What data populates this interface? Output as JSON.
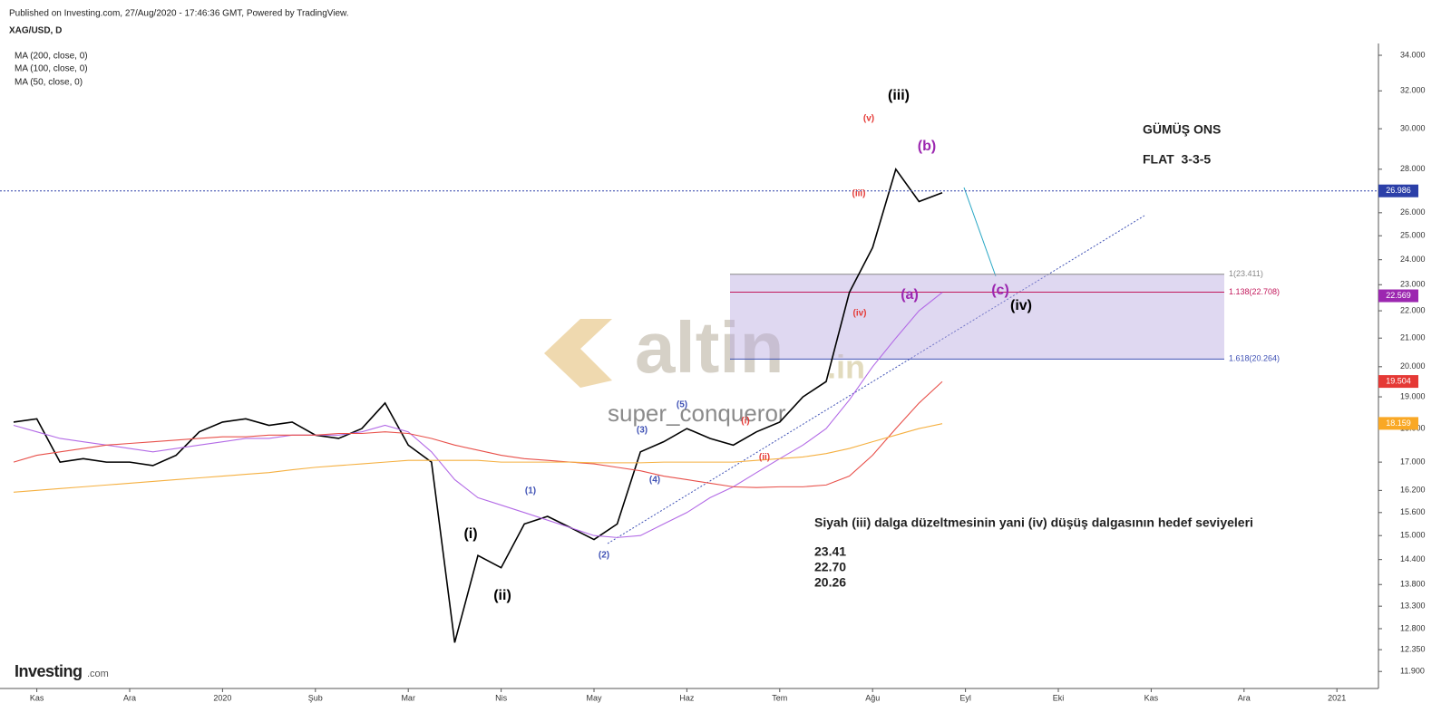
{
  "header": {
    "published": "Published on Investing.com, 27/Aug/2020 - 17:46:36 GMT, Powered by TradingView.",
    "symbol": "XAG/USD, D",
    "indicators": [
      "MA (200, close, 0)",
      "MA (100, close, 0)",
      "MA (50, close, 0)"
    ]
  },
  "watermark": {
    "brand": "altin",
    "suffix": ".in",
    "author": "super_conqueror"
  },
  "logo": {
    "name": "Investing",
    "suffix": ".com"
  },
  "chart_data": {
    "type": "line",
    "title": "GÜMÜŞ ONS",
    "subtitle": "FLAT  3-3-5",
    "log": true,
    "categories": [
      null,
      "Kas",
      null,
      null,
      null,
      "Ara",
      null,
      null,
      null,
      "2020",
      null,
      null,
      null,
      "Şub",
      null,
      null,
      null,
      "Mar",
      null,
      null,
      null,
      "Nis",
      null,
      null,
      null,
      "May",
      null,
      null,
      null,
      "Haz",
      null,
      null,
      null,
      "Tem",
      null,
      null,
      null,
      "Ağu",
      null,
      null,
      null,
      "Eyl",
      null,
      null,
      null,
      "Eki",
      null,
      null,
      null,
      "Kas",
      null,
      null,
      null,
      "Ara",
      null,
      null,
      null,
      "2021",
      null
    ],
    "series": [
      {
        "name": "XAG/USD",
        "color": "#000000",
        "last": 26.986,
        "last_color": "#2b3fa8",
        "values": [
          18.2,
          18.3,
          17.0,
          17.1,
          17.0,
          17.0,
          16.9,
          17.2,
          17.9,
          18.2,
          18.3,
          18.1,
          18.2,
          17.8,
          17.7,
          18.0,
          18.8,
          17.5,
          17.0,
          12.5,
          14.5,
          14.2,
          15.3,
          15.5,
          15.2,
          14.9,
          15.3,
          17.3,
          17.6,
          18.0,
          17.7,
          17.5,
          17.9,
          18.2,
          19.0,
          19.5,
          22.7,
          24.5,
          28.0,
          26.5,
          26.9,
          null,
          null,
          null,
          null,
          null,
          null,
          null,
          null,
          null,
          null,
          null,
          null,
          null,
          null,
          null,
          null,
          null,
          null
        ]
      },
      {
        "name": "MA (50, close, 0)",
        "color": "#b36be6",
        "last": 22.569,
        "last_color": "#9c27b0",
        "values": [
          18.1,
          17.9,
          17.7,
          17.6,
          17.5,
          17.4,
          17.3,
          17.4,
          17.5,
          17.6,
          17.7,
          17.7,
          17.8,
          17.8,
          17.8,
          17.9,
          18.1,
          17.9,
          17.3,
          16.5,
          16.0,
          15.8,
          15.6,
          15.4,
          15.2,
          15.0,
          14.95,
          15.0,
          15.3,
          15.6,
          16.0,
          16.3,
          16.7,
          17.1,
          17.5,
          18.0,
          18.9,
          20.0,
          21.0,
          22.0,
          22.7,
          null,
          null,
          null,
          null,
          null,
          null,
          null,
          null,
          null,
          null,
          null,
          null,
          null,
          null,
          null,
          null,
          null,
          null
        ]
      },
      {
        "name": "MA (100, close, 0)",
        "color": "#e8504a",
        "last": 19.504,
        "last_color": "#e53935",
        "values": [
          17.0,
          17.2,
          17.3,
          17.4,
          17.5,
          17.55,
          17.6,
          17.65,
          17.7,
          17.75,
          17.75,
          17.8,
          17.8,
          17.8,
          17.85,
          17.85,
          17.9,
          17.85,
          17.7,
          17.5,
          17.35,
          17.2,
          17.1,
          17.05,
          17.0,
          16.95,
          16.85,
          16.75,
          16.6,
          16.5,
          16.4,
          16.3,
          16.28,
          16.3,
          16.3,
          16.35,
          16.6,
          17.2,
          18.0,
          18.8,
          19.5,
          null,
          null,
          null,
          null,
          null,
          null,
          null,
          null,
          null,
          null,
          null,
          null,
          null,
          null,
          null,
          null,
          null,
          null
        ]
      },
      {
        "name": "MA (200, close, 0)",
        "color": "#f5b041",
        "last": 18.159,
        "last_color": "#f9a825",
        "values": [
          16.15,
          16.2,
          16.25,
          16.3,
          16.35,
          16.4,
          16.45,
          16.5,
          16.55,
          16.6,
          16.65,
          16.7,
          16.78,
          16.85,
          16.9,
          16.95,
          17.0,
          17.05,
          17.05,
          17.05,
          17.05,
          17.0,
          17.0,
          17.0,
          17.0,
          16.98,
          16.98,
          16.98,
          17.0,
          17.0,
          17.0,
          17.0,
          17.05,
          17.1,
          17.15,
          17.25,
          17.4,
          17.6,
          17.8,
          18.0,
          18.15,
          null,
          null,
          null,
          null,
          null,
          null,
          null,
          null,
          null,
          null,
          null,
          null,
          null,
          null,
          null,
          null,
          null,
          null
        ]
      }
    ],
    "ylim": [
      11.56,
      34.69
    ],
    "yticks": [
      {
        "value": 11.9,
        "label": "11.900"
      },
      {
        "value": 12.35,
        "label": "12.350"
      },
      {
        "value": 12.8,
        "label": "12.800"
      },
      {
        "value": 13.3,
        "label": "13.300"
      },
      {
        "value": 13.8,
        "label": "13.800"
      },
      {
        "value": 14.4,
        "label": "14.400"
      },
      {
        "value": 15,
        "label": "15.000"
      },
      {
        "value": 15.6,
        "label": "15.600"
      },
      {
        "value": 16.2,
        "label": "16.200"
      },
      {
        "value": 17,
        "label": "17.000"
      },
      {
        "value": 18,
        "label": "18.000"
      },
      {
        "value": 19,
        "label": "19.000"
      },
      {
        "value": 20,
        "label": "20.000"
      },
      {
        "value": 21,
        "label": "21.000"
      },
      {
        "value": 22,
        "label": "22.000"
      },
      {
        "value": 23,
        "label": "23.000"
      },
      {
        "value": 24,
        "label": "24.000"
      },
      {
        "value": 25,
        "label": "25.000"
      },
      {
        "value": 26,
        "label": "26.000"
      },
      {
        "value": 28,
        "label": "28.000"
      },
      {
        "value": 30,
        "label": "30.000"
      },
      {
        "value": 32,
        "label": "32.000"
      },
      {
        "value": 34,
        "label": "34.000"
      }
    ],
    "fib_levels": [
      {
        "value": 23.411,
        "label": "1(23.411)",
        "color": "#888888"
      },
      {
        "value": 22.708,
        "label": "1.138(22.708)",
        "color": "#c2185b"
      },
      {
        "value": 20.264,
        "label": "1.618(20.264)",
        "color": "#3f51b5"
      }
    ],
    "annotations": [
      {
        "text": "(iii)",
        "color": "#000000"
      },
      {
        "text": "(v)",
        "color": "#e53935"
      },
      {
        "text": "(b)",
        "color": "#9c27b0"
      },
      {
        "text": "(iii)",
        "color": "#e53935"
      },
      {
        "text": "(a)",
        "color": "#9c27b0"
      },
      {
        "text": "(c)",
        "color": "#9c27b0"
      },
      {
        "text": "(iv)",
        "color": "#000000"
      },
      {
        "text": "(iv)",
        "color": "#e53935"
      },
      {
        "text": "(5)",
        "color": "#3f51b5"
      },
      {
        "text": "(3)",
        "color": "#3f51b5"
      },
      {
        "text": "(4)",
        "color": "#3f51b5"
      },
      {
        "text": "(i)",
        "color": "#e53935"
      },
      {
        "text": "(ii)",
        "color": "#e53935"
      },
      {
        "text": "(1)",
        "color": "#3f51b5"
      },
      {
        "text": "(2)",
        "color": "#3f51b5"
      },
      {
        "text": "(i)",
        "color": "#000000"
      },
      {
        "text": "(ii)",
        "color": "#000000"
      }
    ],
    "note": "Siyah (iii) dalga düzeltmesinin yani (iv) düşüş dalgasının hedef seviyeleri",
    "targets": [
      23.41,
      {
        "value": 22.7,
        "label": "22.70"
      },
      20.26
    ]
  }
}
